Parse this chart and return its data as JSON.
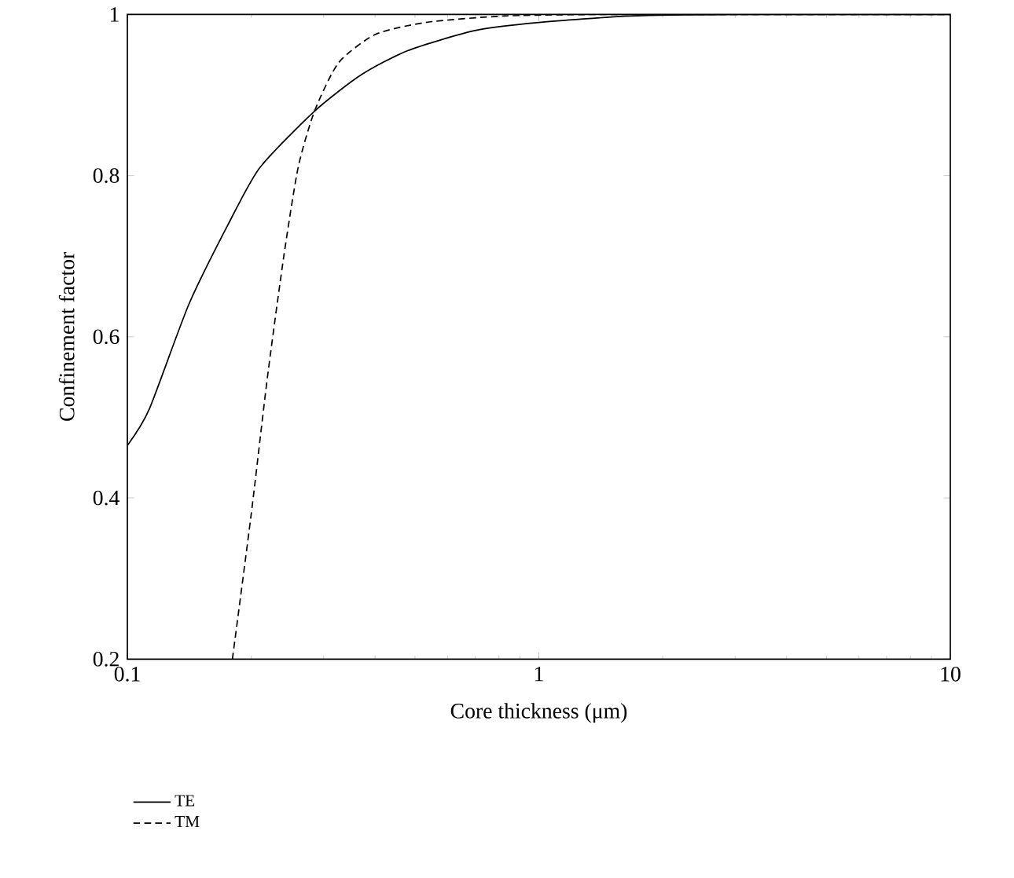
{
  "chart_data": {
    "type": "line",
    "xlabel": "Core thickness (μm)",
    "ylabel": "Confinement factor",
    "log": "x",
    "xlim": [
      0.1,
      10
    ],
    "ylim": [
      0.2,
      1
    ],
    "xticks": [
      0.1,
      1,
      10
    ],
    "yticks": [
      0.2,
      0.4,
      0.6,
      0.8,
      1
    ],
    "legend": "bottom left",
    "grid": false,
    "series": [
      {
        "name": "TE",
        "color": "#000000",
        "line_style": "solid",
        "x": [
          0.1,
          0.113,
          0.141,
          0.176,
          0.21,
          0.285,
          0.37,
          0.48,
          0.7,
          1,
          1.67,
          3,
          10
        ],
        "values": [
          0.465,
          0.51,
          0.64,
          0.74,
          0.81,
          0.88,
          0.925,
          0.955,
          0.98,
          0.99,
          0.998,
          1,
          1
        ]
      },
      {
        "name": "TM",
        "color": "#000000",
        "line_style": "dashed",
        "x": [
          0.18,
          0.2,
          0.219,
          0.24,
          0.26,
          0.285,
          0.326,
          0.4,
          0.53,
          0.82,
          1.5,
          10
        ],
        "values": [
          0.2,
          0.38,
          0.55,
          0.7,
          0.81,
          0.88,
          0.94,
          0.975,
          0.99,
          0.998,
          1,
          1
        ]
      }
    ]
  }
}
